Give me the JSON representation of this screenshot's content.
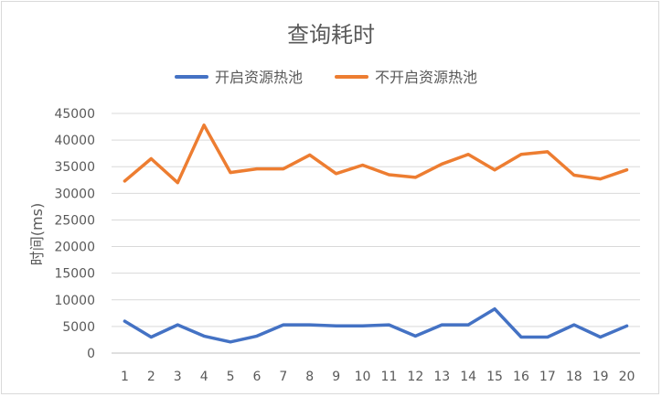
{
  "chart_data": {
    "type": "line",
    "title": "查询耗时",
    "xlabel": "",
    "ylabel": "时间(ms)",
    "x": [
      "1",
      "2",
      "3",
      "4",
      "5",
      "6",
      "7",
      "8",
      "9",
      "10",
      "11",
      "12",
      "13",
      "14",
      "15",
      "16",
      "17",
      "18",
      "19",
      "20"
    ],
    "ylim": [
      0,
      45000
    ],
    "y_ticks": [
      "0",
      "5000",
      "10000",
      "15000",
      "20000",
      "25000",
      "30000",
      "35000",
      "40000",
      "45000"
    ],
    "grid": true,
    "legend": "top",
    "series": [
      {
        "name": "开启资源热池",
        "color": "#4472C4",
        "values": [
          6000,
          3000,
          5300,
          3200,
          2100,
          3200,
          5300,
          5300,
          5100,
          5100,
          5300,
          3200,
          5300,
          5300,
          8300,
          3000,
          3000,
          5300,
          3000,
          5100
        ]
      },
      {
        "name": "不开启资源热池",
        "color": "#ED7D31",
        "values": [
          32300,
          36500,
          32000,
          42800,
          33900,
          34600,
          34600,
          37200,
          33700,
          35300,
          33500,
          33000,
          35500,
          37300,
          34400,
          37300,
          37800,
          33400,
          32700,
          34400
        ]
      }
    ]
  }
}
